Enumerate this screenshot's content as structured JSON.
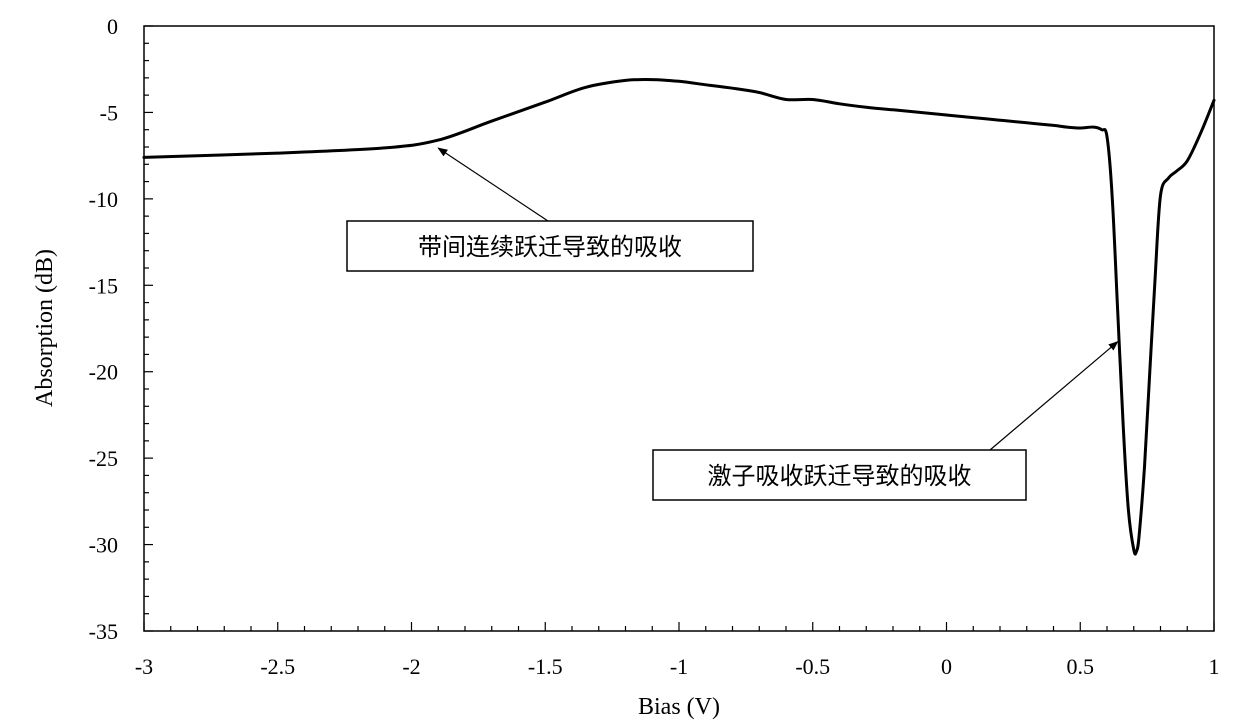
{
  "chart_data": {
    "type": "line",
    "xlabel": "Bias (V)",
    "ylabel": "Absorption (dB)",
    "xlim": [
      -3,
      1
    ],
    "ylim": [
      -35,
      0
    ],
    "x_ticks": [
      "-3",
      "-2.5",
      "-2",
      "-1.5",
      "-1",
      "-0.5",
      "0",
      "0.5",
      "1"
    ],
    "y_ticks": [
      "0",
      "-5",
      "-10",
      "-15",
      "-20",
      "-25",
      "-30",
      "-35"
    ],
    "grid": false,
    "legend": "none",
    "series": [
      {
        "color": "#000000",
        "x": [
          -3.0,
          -2.5,
          -2.1,
          -1.9,
          -1.7,
          -1.5,
          -1.35,
          -1.2,
          -1.1,
          -1.0,
          -0.9,
          -0.8,
          -0.7,
          -0.6,
          -0.5,
          -0.4,
          -0.3,
          -0.2,
          -0.1,
          0.0,
          0.1,
          0.2,
          0.3,
          0.4,
          0.45,
          0.5,
          0.55,
          0.58,
          0.6,
          0.62,
          0.64,
          0.66,
          0.68,
          0.7,
          0.71,
          0.72,
          0.74,
          0.76,
          0.78,
          0.8,
          0.83,
          0.86,
          0.9,
          0.95,
          1.0
        ],
        "y": [
          -7.6,
          -7.35,
          -7.05,
          -6.6,
          -5.5,
          -4.4,
          -3.55,
          -3.15,
          -3.1,
          -3.2,
          -3.4,
          -3.6,
          -3.85,
          -4.25,
          -4.25,
          -4.5,
          -4.7,
          -4.85,
          -5.0,
          -5.15,
          -5.3,
          -5.45,
          -5.6,
          -5.75,
          -5.85,
          -5.9,
          -5.85,
          -6.0,
          -6.4,
          -10.0,
          -16.5,
          -23.0,
          -28.0,
          -30.3,
          -30.4,
          -29.5,
          -25.5,
          -20.0,
          -14.5,
          -9.8,
          -8.8,
          -8.4,
          -7.8,
          -6.2,
          -4.3
        ]
      }
    ],
    "annotations": [
      {
        "text": "带间连续跃迁导致的吸收",
        "target_x": -1.9,
        "target_y": -6.6
      },
      {
        "text": "激子吸收跃迁导致的吸收",
        "target_x": 0.64,
        "target_y": -17.8
      }
    ]
  }
}
